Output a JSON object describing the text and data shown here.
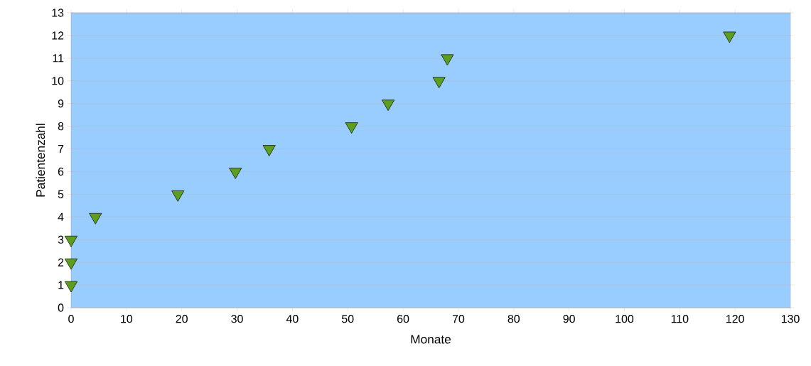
{
  "chart_data": {
    "type": "scatter",
    "xlabel": "Monate",
    "ylabel": "Patientenzahl",
    "x": [
      0,
      0,
      0,
      4.4,
      19.3,
      29.7,
      35.8,
      50.7,
      57.3,
      66.5,
      68,
      119
    ],
    "series": [
      {
        "color": "#5c9e1e",
        "values": [
          1,
          2,
          3,
          4,
          5,
          6,
          7,
          8,
          9,
          10,
          11,
          12
        ]
      }
    ],
    "xlim": [
      0,
      130
    ],
    "ylim": [
      0,
      13
    ],
    "xticks": [
      0,
      10,
      20,
      30,
      40,
      50,
      60,
      70,
      80,
      90,
      100,
      110,
      120,
      130
    ],
    "yticks": [
      0,
      1,
      2,
      3,
      4,
      5,
      6,
      7,
      8,
      9,
      10,
      11,
      12,
      13
    ],
    "grid": "y",
    "marker": "triangle"
  }
}
